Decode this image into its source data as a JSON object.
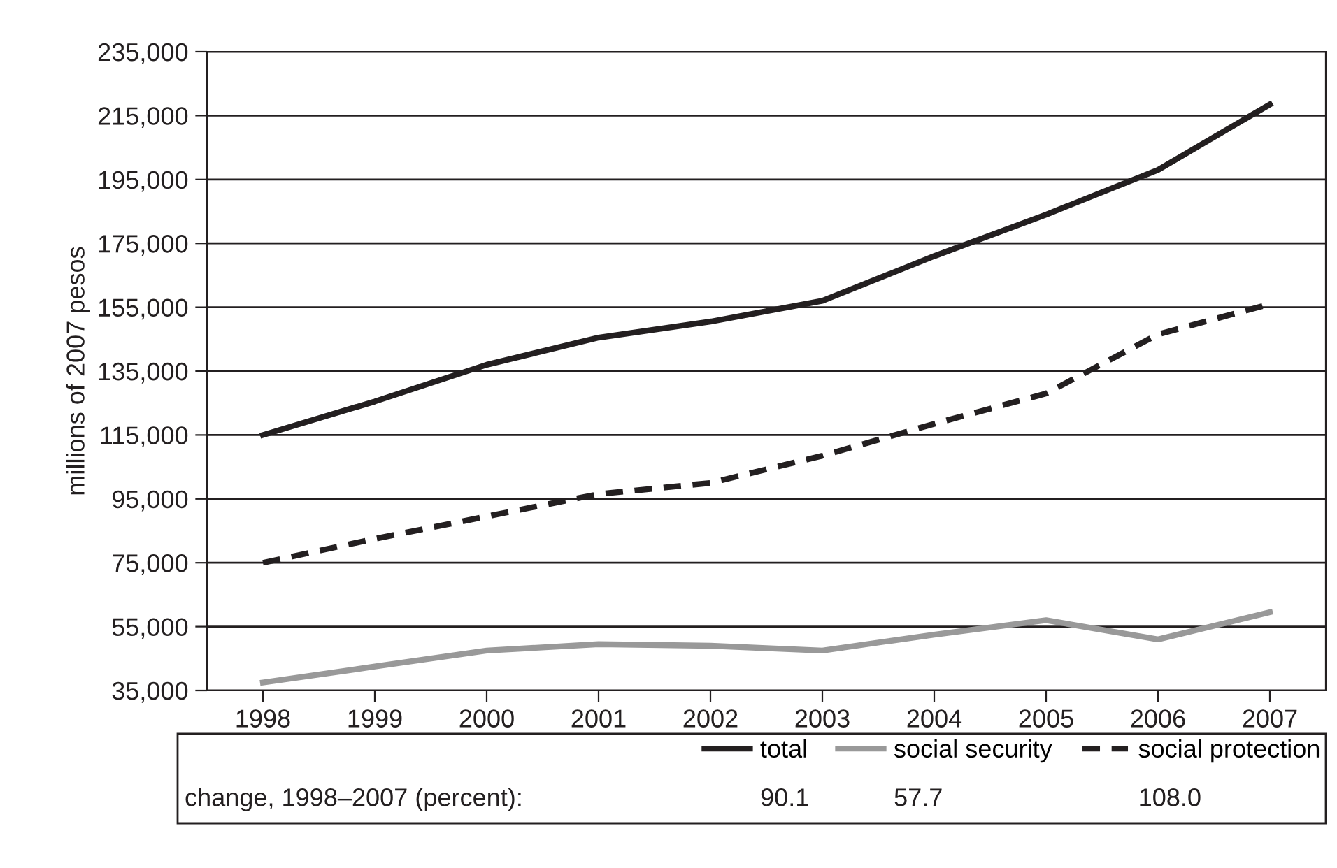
{
  "chart_data": {
    "type": "line",
    "ylabel": "millions of 2007 pesos",
    "categories": [
      "1998",
      "1999",
      "2000",
      "2001",
      "2002",
      "2003",
      "2004",
      "2005",
      "2006",
      "2007"
    ],
    "series": [
      {
        "name": "total",
        "color": "#231f20",
        "line_style": "solid",
        "values": [
          115000,
          125500,
          137000,
          145500,
          150500,
          157000,
          171000,
          184000,
          198000,
          218500
        ]
      },
      {
        "name": "social security",
        "color": "#999999",
        "line_style": "solid",
        "values": [
          37500,
          42500,
          47500,
          49500,
          49000,
          47500,
          52500,
          57000,
          51000,
          59500
        ]
      },
      {
        "name": "social protection",
        "color": "#231f20",
        "line_style": "dashed",
        "values": [
          75000,
          82500,
          89500,
          96500,
          100000,
          108500,
          118500,
          128000,
          146500,
          156000
        ]
      }
    ],
    "ylim": [
      35000,
      235000
    ],
    "yticks": [
      {
        "value": 35000,
        "label": "35,000"
      },
      {
        "value": 55000,
        "label": "55,000"
      },
      {
        "value": 75000,
        "label": "75,000"
      },
      {
        "value": 95000,
        "label": "95,000"
      },
      {
        "value": 115000,
        "label": "115,000"
      },
      {
        "value": 135000,
        "label": "135,000"
      },
      {
        "value": 155000,
        "label": "155,000"
      },
      {
        "value": 175000,
        "label": "175,000"
      },
      {
        "value": 195000,
        "label": "195,000"
      },
      {
        "value": 215000,
        "label": "215,000"
      },
      {
        "value": 235000,
        "label": "235,000"
      }
    ],
    "grid": "y",
    "legend": "bottom",
    "annotations": [
      "change, 1998–2007 (percent):",
      "90.1",
      "57.7",
      "108.0"
    ]
  }
}
